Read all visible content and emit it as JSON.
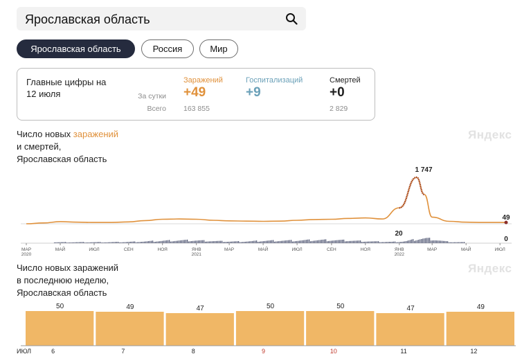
{
  "search": {
    "query": "Ярославская область"
  },
  "tabs": [
    {
      "label": "Ярославская область",
      "active": true
    },
    {
      "label": "Россия",
      "active": false
    },
    {
      "label": "Мир",
      "active": false
    }
  ],
  "summary": {
    "title_line1": "Главные цифры на",
    "title_line2": "12 июля",
    "row_day": "За сутки",
    "row_total": "Всего",
    "infections": {
      "label": "Заражений",
      "day": "+49",
      "total": "163 855"
    },
    "hospitalizations": {
      "label": "Госпитализаций",
      "day": "+9",
      "total": ""
    },
    "deaths": {
      "label": "Смертей",
      "day": "+0",
      "total": "2 829"
    }
  },
  "timeline": {
    "title_part1": "Число новых ",
    "title_highlight": "заражений",
    "title_line2": "и смертей,",
    "title_line3": "Ярославская область",
    "watermark": "Яндекс",
    "peak_label": "1 747",
    "end_label": "49",
    "deaths_peak_label": "20",
    "deaths_end_label": "0",
    "month_ticks": [
      "МАР",
      "МАЙ",
      "ИЮЛ",
      "СЕН",
      "НОЯ",
      "ЯНВ",
      "МАР",
      "МАЙ",
      "ИЮЛ",
      "СЕН",
      "НОЯ",
      "ЯНВ",
      "МАР",
      "МАЙ",
      "ИЮЛ"
    ],
    "year_ticks": [
      {
        "label": "2020",
        "index": 0
      },
      {
        "label": "2021",
        "index": 5
      },
      {
        "label": "2022",
        "index": 11
      }
    ]
  },
  "weekly": {
    "title_line1": "Число новых заражений",
    "title_line2": "в последнюю неделю,",
    "title_line3": "Ярославская область",
    "watermark": "Яндекс",
    "month_label": "ИЮЛ"
  },
  "chart_data": [
    {
      "type": "line",
      "title": "Число новых заражений и смертей, Ярославская область",
      "series": [
        {
          "name": "заражений",
          "x": [
            "2020-03",
            "2020-04",
            "2020-05",
            "2020-06",
            "2020-07",
            "2020-08",
            "2020-09",
            "2020-10",
            "2020-11",
            "2020-12",
            "2021-01",
            "2021-02",
            "2021-03",
            "2021-04",
            "2021-05",
            "2021-06",
            "2021-07",
            "2021-08",
            "2021-09",
            "2021-10",
            "2021-11",
            "2021-12",
            "2022-01",
            "2022-02",
            "2022-02-15",
            "2022-03",
            "2022-04",
            "2022-05",
            "2022-06",
            "2022-07-12"
          ],
          "values": [
            0,
            30,
            80,
            60,
            50,
            50,
            70,
            120,
            170,
            180,
            170,
            130,
            110,
            100,
            90,
            100,
            130,
            160,
            170,
            200,
            220,
            180,
            600,
            1747,
            1100,
            250,
            90,
            60,
            50,
            49
          ]
        }
      ],
      "annotations": [
        "1 747",
        "49",
        "20",
        "0"
      ]
    },
    {
      "type": "bar",
      "title": "Число новых заражений в последнюю неделю, Ярославская область",
      "categories": [
        "6",
        "7",
        "8",
        "9",
        "10",
        "11",
        "12"
      ],
      "values": [
        50,
        49,
        47,
        50,
        50,
        47,
        49
      ],
      "weekend": [
        false,
        false,
        false,
        true,
        true,
        false,
        false
      ],
      "xlabel": "ИЮЛ"
    }
  ],
  "colors": {
    "accent": "#e0913b",
    "bar": "#f0b766",
    "deaths_dots": "#8a2e2a",
    "deaths_bars": "#4c5370",
    "weekend_label": "#c0392b"
  }
}
